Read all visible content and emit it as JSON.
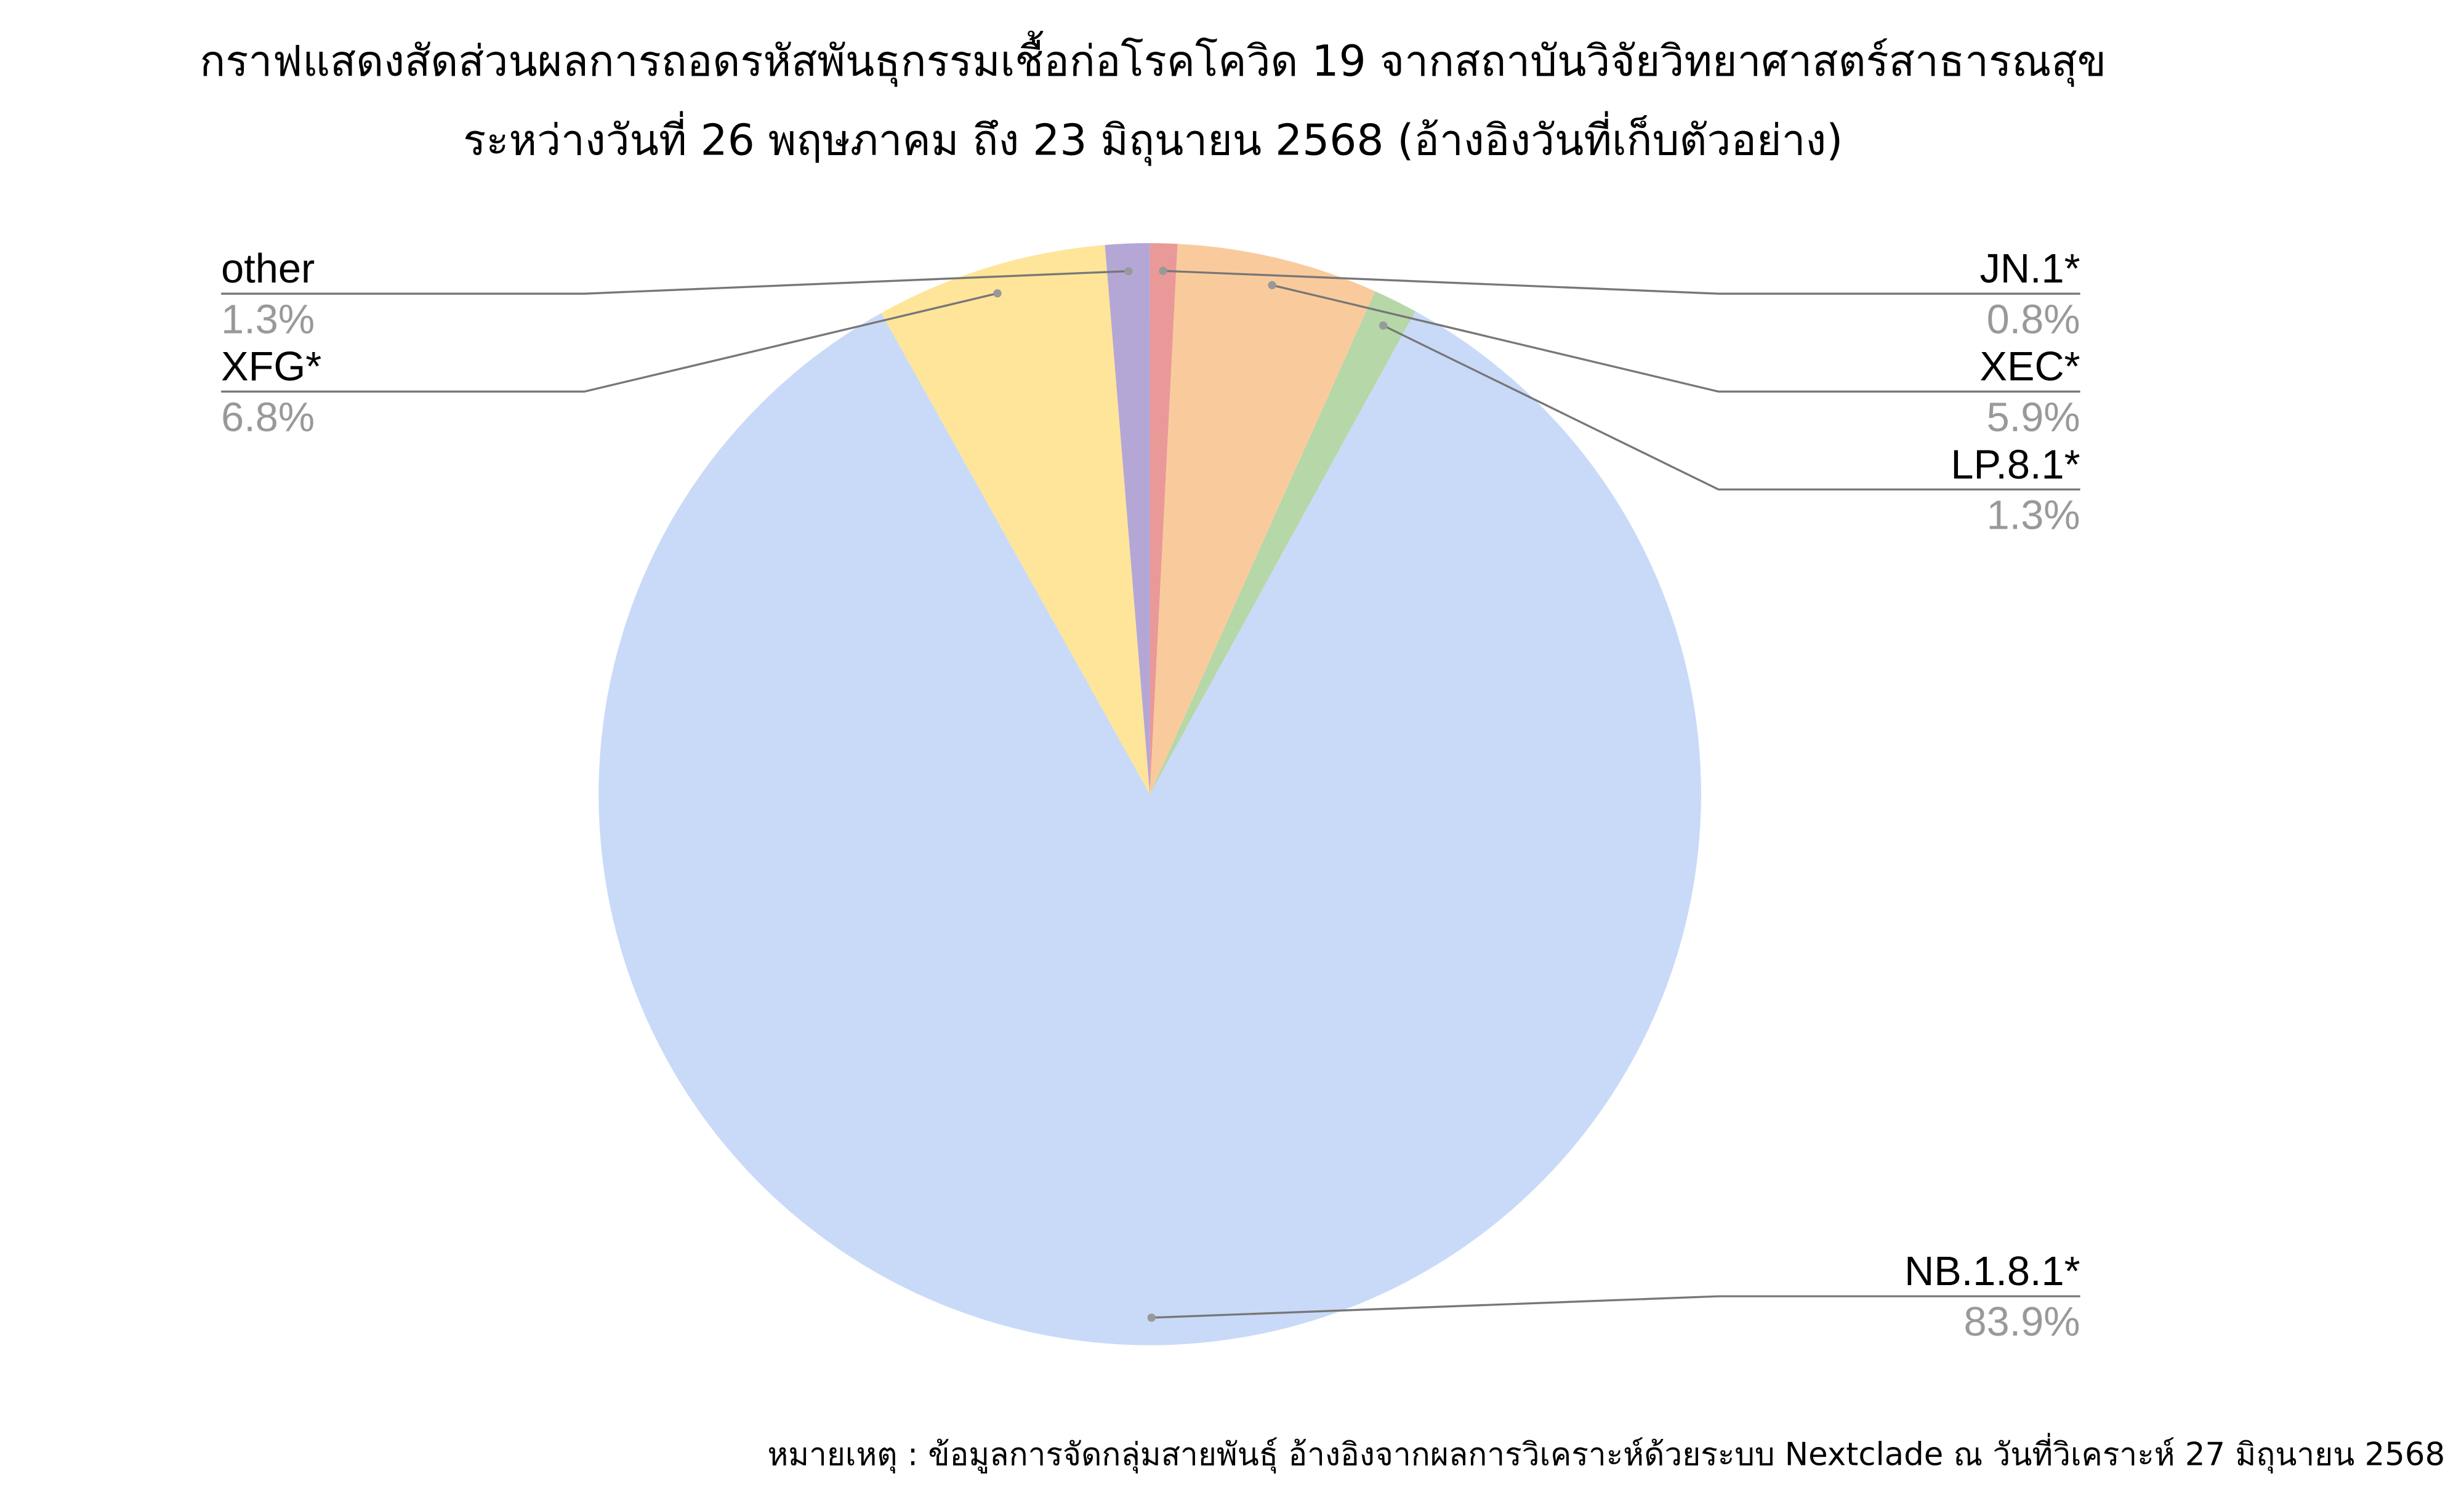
{
  "chart_data": {
    "type": "pie",
    "title": "กราฟแสดงสัดส่วนผลการถอดรหัสพันธุกรรมเชื้อก่อโรคโควิด 19 จากสถาบันวิจัยวิทยาศาสตร์สาธารณสุข",
    "subtitle": "ระหว่างวันที่ 26 พฤษภาคม ถึง 23 มิถุนายน 2568 (อ้างอิงวันที่เก็บตัวอย่าง)",
    "note": "หมายเหตุ : ข้อมูลการจัดกลุ่มสายพันธุ์ อ้างอิงจากผลการวิเคราะห์ด้วยระบบ Nextclade ณ วันที่วิเคราะห์ 27 มิถุนายน 2568",
    "categories": [
      "JN.1*",
      "XEC*",
      "LP.8.1*",
      "NB.1.8.1*",
      "XFG*",
      "other"
    ],
    "values": [
      0.8,
      5.9,
      1.3,
      83.9,
      6.8,
      1.3
    ],
    "value_labels": [
      "0.8%",
      "5.9%",
      "1.3%",
      "83.9%",
      "6.8%",
      "1.3%"
    ],
    "colors": [
      "#ea9999",
      "#f9cb9c",
      "#b6d7a8",
      "#c9daf8",
      "#ffe599",
      "#b4a7d6"
    ]
  }
}
